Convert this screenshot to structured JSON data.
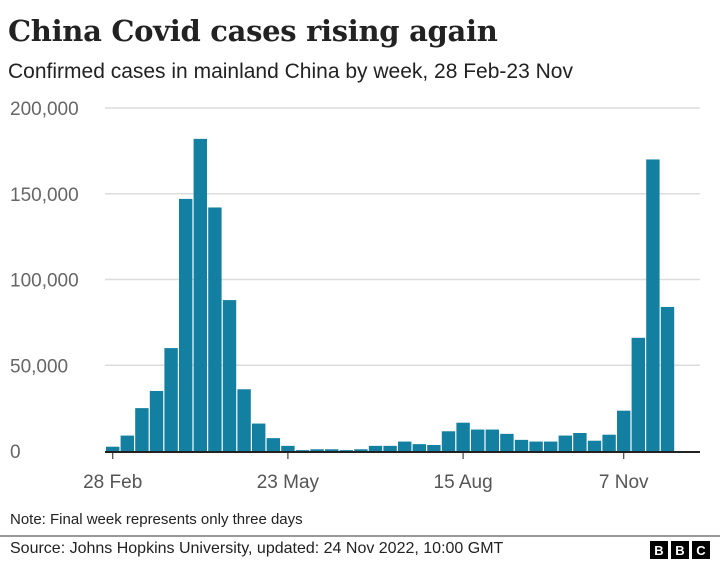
{
  "chart_data": {
    "type": "bar",
    "title": "China Covid cases rising again",
    "subtitle": "Confirmed cases in mainland China by week, 28 Feb-23 Nov",
    "xlabel": "",
    "ylabel": "",
    "ylim": [
      0,
      200000
    ],
    "yticks": [
      0,
      50000,
      100000,
      150000,
      200000
    ],
    "ytick_labels": [
      "0",
      "50,000",
      "100,000",
      "150,000",
      "200,000"
    ],
    "xtick_labels": [
      {
        "label": "28 Feb",
        "bar_index": 0
      },
      {
        "label": "23 May",
        "bar_index": 12
      },
      {
        "label": "15 Aug",
        "bar_index": 24
      },
      {
        "label": "7 Nov",
        "bar_index": 35
      }
    ],
    "grid": true,
    "bar_color": "#1380A1",
    "values": [
      2500,
      9000,
      25000,
      35000,
      60000,
      147000,
      182000,
      142000,
      88000,
      36000,
      16000,
      7500,
      3000,
      500,
      1000,
      1000,
      500,
      1000,
      3000,
      3000,
      5500,
      4000,
      3500,
      11500,
      16500,
      12500,
      12500,
      10000,
      6500,
      5500,
      5500,
      9000,
      10500,
      6000,
      9500,
      23500,
      66000,
      170000,
      84000
    ]
  },
  "footer": {
    "note": "Note: Final week represents only three days",
    "source": "Source: Johns Hopkins University, updated:  24 Nov 2022, 10:00 GMT",
    "logo": [
      "B",
      "B",
      "C"
    ]
  }
}
